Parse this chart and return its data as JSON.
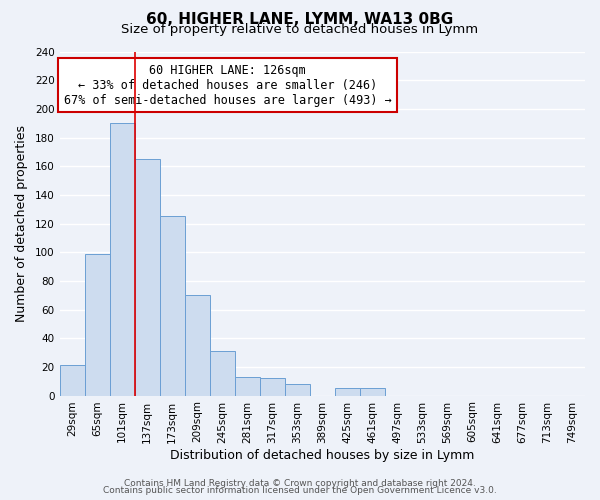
{
  "title": "60, HIGHER LANE, LYMM, WA13 0BG",
  "subtitle": "Size of property relative to detached houses in Lymm",
  "xlabel": "Distribution of detached houses by size in Lymm",
  "ylabel": "Number of detached properties",
  "bar_labels": [
    "29sqm",
    "65sqm",
    "101sqm",
    "137sqm",
    "173sqm",
    "209sqm",
    "245sqm",
    "281sqm",
    "317sqm",
    "353sqm",
    "389sqm",
    "425sqm",
    "461sqm",
    "497sqm",
    "533sqm",
    "569sqm",
    "605sqm",
    "641sqm",
    "677sqm",
    "713sqm",
    "749sqm"
  ],
  "bar_values": [
    21,
    99,
    190,
    165,
    125,
    70,
    31,
    13,
    12,
    8,
    0,
    5,
    5,
    0,
    0,
    0,
    0,
    0,
    0,
    0,
    0
  ],
  "bar_color": "#cddcef",
  "bar_edge_color": "#6b9fd4",
  "vline_color": "#dd0000",
  "vline_position": 2.5,
  "annotation_line1": "60 HIGHER LANE: 126sqm",
  "annotation_line2": "← 33% of detached houses are smaller (246)",
  "annotation_line3": "67% of semi-detached houses are larger (493) →",
  "ylim": [
    0,
    240
  ],
  "ytick_step": 20,
  "footer_line1": "Contains HM Land Registry data © Crown copyright and database right 2024.",
  "footer_line2": "Contains public sector information licensed under the Open Government Licence v3.0.",
  "bg_color": "#eef2f9",
  "plot_bg_color": "#eef2f9",
  "grid_color": "#ffffff",
  "title_fontsize": 11,
  "subtitle_fontsize": 9.5,
  "axis_label_fontsize": 9,
  "tick_fontsize": 7.5,
  "annotation_fontsize": 8.5,
  "footer_fontsize": 6.5
}
